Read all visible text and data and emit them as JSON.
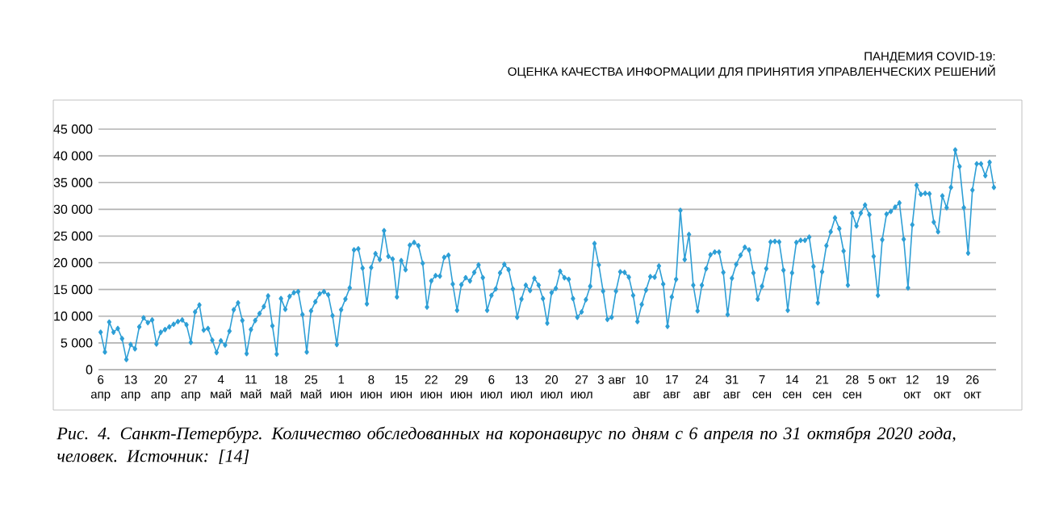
{
  "chart_data": {
    "type": "line",
    "title": "ПАНДЕМИЯ COVID-19:",
    "subtitle": "ОЦЕНКА КАЧЕСТВА ИНФОРМАЦИИ ДЛЯ ПРИНЯТИЯ УПРАВЛЕНЧЕСКИХ РЕШЕНИЙ",
    "annotations": [
      "Рис. 4. Санкт-Петербург. Количество обследованных на коронавирус по дням с 6 апреля по 31 октября 2020 года, человек. Источник: [14]"
    ],
    "categories": [
      "6 апр",
      null,
      null,
      null,
      null,
      null,
      null,
      "13 апр",
      null,
      null,
      null,
      null,
      null,
      null,
      "20 апр",
      null,
      null,
      null,
      null,
      null,
      null,
      "27 апр",
      null,
      null,
      null,
      null,
      null,
      null,
      "4 май",
      null,
      null,
      null,
      null,
      null,
      null,
      "11 май",
      null,
      null,
      null,
      null,
      null,
      null,
      "18 май",
      null,
      null,
      null,
      null,
      null,
      null,
      "25 май",
      null,
      null,
      null,
      null,
      null,
      null,
      "1 июн",
      null,
      null,
      null,
      null,
      null,
      null,
      "8 июн",
      null,
      null,
      null,
      null,
      null,
      null,
      "15 июн",
      null,
      null,
      null,
      null,
      null,
      null,
      "22 июн",
      null,
      null,
      null,
      null,
      null,
      null,
      "29 июн",
      null,
      null,
      null,
      null,
      null,
      null,
      "6 июл",
      null,
      null,
      null,
      null,
      null,
      null,
      "13 июл",
      null,
      null,
      null,
      null,
      null,
      null,
      "20 июл",
      null,
      null,
      null,
      null,
      null,
      null,
      "27 июл",
      null,
      null,
      null,
      null,
      null,
      null,
      "3 авг",
      null,
      null,
      null,
      null,
      null,
      null,
      "10 авг",
      null,
      null,
      null,
      null,
      null,
      null,
      "17 авг",
      null,
      null,
      null,
      null,
      null,
      null,
      "24 авг",
      null,
      null,
      null,
      null,
      null,
      null,
      "31 авг",
      null,
      null,
      null,
      null,
      null,
      null,
      "7 сен",
      null,
      null,
      null,
      null,
      null,
      null,
      "14 сен",
      null,
      null,
      null,
      null,
      null,
      null,
      "21 сен",
      null,
      null,
      null,
      null,
      null,
      null,
      "28 сен",
      null,
      null,
      null,
      null,
      null,
      null,
      "5 окт",
      null,
      null,
      null,
      null,
      null,
      null,
      "12 окт",
      null,
      null,
      null,
      null,
      null,
      null,
      "19 окт",
      null,
      null,
      null,
      null,
      null,
      null,
      "26 окт",
      null,
      null,
      null,
      null,
      null
    ],
    "values": [
      7000,
      3300,
      8900,
      7000,
      7700,
      5800,
      1900,
      4700,
      3900,
      8000,
      9700,
      8800,
      9300,
      4800,
      7000,
      7500,
      8000,
      8500,
      9000,
      9300,
      8400,
      5100,
      10800,
      12100,
      7400,
      7700,
      5500,
      3200,
      5400,
      4600,
      7200,
      11200,
      12500,
      9200,
      3000,
      7500,
      9200,
      10500,
      11800,
      13800,
      8200,
      2900,
      13300,
      11300,
      13700,
      14400,
      14600,
      10300,
      3300,
      11000,
      12700,
      14200,
      14600,
      14000,
      10100,
      4700,
      11200,
      13200,
      15300,
      22400,
      22600,
      19000,
      12300,
      19100,
      21700,
      20600,
      26000,
      21200,
      20700,
      13600,
      20400,
      18700,
      23300,
      23800,
      23200,
      19900,
      11700,
      16600,
      17600,
      17500,
      21000,
      21400,
      16000,
      11100,
      15900,
      17200,
      16600,
      18200,
      19600,
      17200,
      11100,
      13900,
      15100,
      18100,
      19700,
      18700,
      15100,
      9800,
      13200,
      15800,
      14800,
      17100,
      15800,
      13300,
      8700,
      14400,
      15200,
      18400,
      17200,
      16900,
      13300,
      9800,
      10800,
      13100,
      15600,
      23600,
      19600,
      14700,
      9400,
      9800,
      14700,
      18300,
      18200,
      17300,
      13900,
      9000,
      12200,
      14900,
      17400,
      17300,
      19400,
      16000,
      8100,
      13600,
      16900,
      29800,
      20600,
      25300,
      15800,
      11000,
      15800,
      18900,
      21500,
      22000,
      22000,
      18200,
      10300,
      17100,
      19700,
      21400,
      22900,
      22400,
      18100,
      13200,
      15600,
      18900,
      23900,
      24000,
      23900,
      18600,
      11100,
      18100,
      23800,
      24200,
      24200,
      24800,
      19300,
      12500,
      18300,
      23200,
      25800,
      28400,
      26400,
      22200,
      15800,
      29300,
      26900,
      29300,
      30800,
      29000,
      21200,
      13900,
      24300,
      29100,
      29600,
      30400,
      31200,
      24400,
      15300,
      27100,
      34500,
      32800,
      33000,
      32900,
      27600,
      25800,
      32500,
      30300,
      34100,
      41100,
      38000,
      30300,
      21800,
      33600,
      38500,
      38500,
      36300,
      38800,
      34100
    ],
    "color": "#2e9fd6",
    "marker": "diamond",
    "line_style": "solid",
    "grid": "y",
    "ylim": [
      0,
      45000
    ],
    "yticks": [
      0,
      {
        "value": 5000,
        "label": "5 000"
      },
      {
        "value": 10000,
        "label": "10 000"
      },
      {
        "value": 15000,
        "label": "15 000"
      },
      {
        "value": 20000,
        "label": "20 000"
      },
      {
        "value": 25000,
        "label": "25 000"
      },
      {
        "value": 30000,
        "label": "30 000"
      },
      {
        "value": 35000,
        "label": "35 000"
      },
      {
        "value": 40000,
        "label": "40 000"
      },
      {
        "value": 45000,
        "label": "45 000"
      }
    ]
  }
}
